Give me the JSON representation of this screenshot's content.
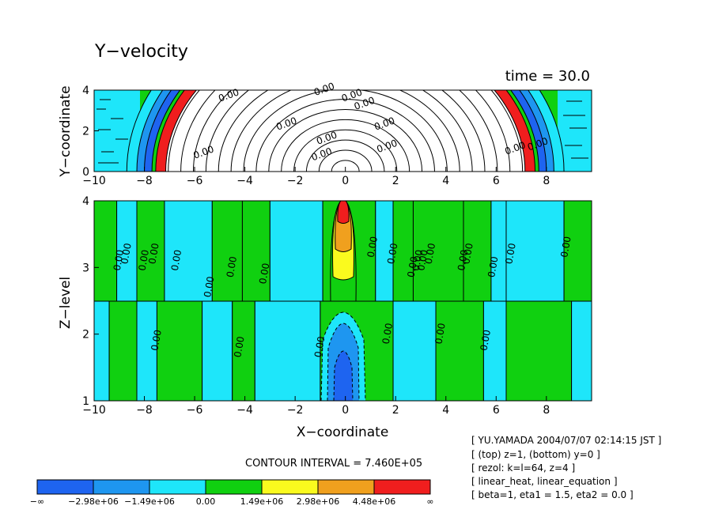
{
  "title": "Y−velocity",
  "time_label": "time = 30.0",
  "contour_interval": "CONTOUR INTERVAL = 7.460E+05",
  "info_lines": [
    "[ YU.YAMADA 2004/07/07 02:14:15 JST ]",
    "[ (top) z=1, (bottom) y=0 ]",
    "[ rezol: k=l=64, z=4 ]",
    "[ linear_heat, linear_equation ]",
    "[ beta=1, eta1 = 1.5, eta2 = 0.0 ]"
  ],
  "colors": {
    "c_neg3": "#1e64f0",
    "c_neg2": "#1e96f0",
    "c_neg1": "#1ee6fa",
    "c_0": "#10d010",
    "c_pos1": "#fafa1e",
    "c_pos2": "#f0a01e",
    "c_pos3": "#f01e1e"
  },
  "chart_data": [
    {
      "type": "contour",
      "panel": "top",
      "xlabel": "X−coordinate",
      "ylabel": "Y−coordinate",
      "xlim": [
        -10,
        10
      ],
      "ylim": [
        0,
        4
      ],
      "xticks": [
        -10,
        -8,
        -6,
        -4,
        -2,
        0,
        2,
        4,
        6,
        8
      ],
      "yticks": [
        0,
        2,
        4
      ],
      "contour_labels": [
        {
          "text": "0.00",
          "x": -4.6,
          "y": 3.6
        },
        {
          "text": "0.00",
          "x": -2.3,
          "y": 2.2
        },
        {
          "text": "0.00",
          "x": -0.7,
          "y": 1.5
        },
        {
          "text": "0.00",
          "x": -0.9,
          "y": 0.7
        },
        {
          "text": "0.00",
          "x": -0.8,
          "y": 3.9
        },
        {
          "text": "0.00",
          "x": 0.3,
          "y": 3.6
        },
        {
          "text": "0.00",
          "x": 0.8,
          "y": 3.2
        },
        {
          "text": "0.00",
          "x": 1.6,
          "y": 2.2
        },
        {
          "text": "0.00",
          "x": 1.7,
          "y": 1.1
        },
        {
          "text": "0.00",
          "x": -5.6,
          "y": 0.8
        },
        {
          "text": "0.00",
          "x": 6.8,
          "y": 1.0
        },
        {
          "text": "0.00",
          "x": 7.7,
          "y": 1.2
        }
      ]
    },
    {
      "type": "contour",
      "panel": "bottom",
      "xlabel": "X−coordinate",
      "ylabel": "Z−level",
      "xlim": [
        -10,
        10
      ],
      "ylim": [
        1,
        4
      ],
      "xticks": [
        -10,
        -8,
        -6,
        -4,
        -2,
        0,
        2,
        4,
        6,
        8
      ],
      "yticks": [
        1,
        2,
        3,
        4
      ],
      "contour_labels": [
        {
          "text": "0.00",
          "x": -8.9,
          "y": 3.1
        },
        {
          "text": "0.00",
          "x": -8.6,
          "y": 3.2
        },
        {
          "text": "0.00",
          "x": -7.9,
          "y": 3.1
        },
        {
          "text": "0.00",
          "x": -7.5,
          "y": 3.2
        },
        {
          "text": "0.00",
          "x": -6.6,
          "y": 3.1
        },
        {
          "text": "0.00",
          "x": -5.3,
          "y": 2.7
        },
        {
          "text": "0.00",
          "x": -4.4,
          "y": 3.0
        },
        {
          "text": "0.00",
          "x": -3.1,
          "y": 2.9
        },
        {
          "text": "0.00",
          "x": 1.2,
          "y": 3.3
        },
        {
          "text": "0.00",
          "x": 2.0,
          "y": 3.2
        },
        {
          "text": "0.00",
          "x": 2.8,
          "y": 3.0
        },
        {
          "text": "0.00",
          "x": 3.0,
          "y": 3.1
        },
        {
          "text": "0.00",
          "x": 3.2,
          "y": 3.1
        },
        {
          "text": "0.00",
          "x": 3.5,
          "y": 3.2
        },
        {
          "text": "0.00",
          "x": 4.8,
          "y": 3.1
        },
        {
          "text": "0.00",
          "x": 5.0,
          "y": 3.2
        },
        {
          "text": "0.00",
          "x": 6.0,
          "y": 3.0
        },
        {
          "text": "0.00",
          "x": 6.7,
          "y": 3.2
        },
        {
          "text": "0.00",
          "x": 8.9,
          "y": 3.3
        },
        {
          "text": "0.00",
          "x": -7.4,
          "y": 1.9
        },
        {
          "text": "0.00",
          "x": -4.1,
          "y": 1.8
        },
        {
          "text": "0.00",
          "x": -0.9,
          "y": 1.8
        },
        {
          "text": "0.00",
          "x": 1.8,
          "y": 2.0
        },
        {
          "text": "0.00",
          "x": 3.9,
          "y": 2.0
        },
        {
          "text": "0.00",
          "x": 5.7,
          "y": 1.9
        }
      ]
    },
    {
      "type": "colorbar",
      "labels": [
        "−∞",
        "−2.98e+06",
        "−1.49e+06",
        "0.00",
        "1.49e+06",
        "2.98e+06",
        "4.48e+06",
        "∞"
      ]
    }
  ]
}
